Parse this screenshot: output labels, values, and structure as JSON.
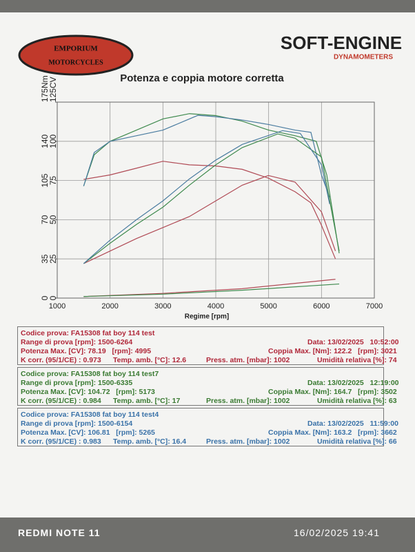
{
  "logo": {
    "left_top": "EMPORIUM",
    "left_bottom": "MOTORCYCLES",
    "right": "SOFT-ENGINE",
    "right_sub": "DYNAMOMETERS"
  },
  "chart_data": {
    "type": "line",
    "title": "Potenza e coppia motore corretta",
    "xlabel": "Regime [rpm]",
    "xlim": [
      1000,
      7000
    ],
    "xticks": [
      1000,
      2000,
      3000,
      4000,
      5000,
      6000,
      7000
    ],
    "ylim": [
      0,
      175
    ],
    "yticks": [
      0,
      35,
      70,
      105,
      140,
      {
        "value": 175,
        "label": "175Nm"
      }
    ],
    "y2lim": [
      0,
      125
    ],
    "y2ticks": [
      0,
      25,
      50,
      75,
      100,
      {
        "value": 125,
        "label": "125CV"
      }
    ],
    "grid": true,
    "series": [
      {
        "color": "#b04a55",
        "axis": "y",
        "x": [
          1500,
          2000,
          2500,
          3000,
          3500,
          4000,
          4500,
          5000,
          5500,
          5800,
          6000,
          6264
        ],
        "values": [
          106,
          110,
          116,
          122.2,
          119,
          118,
          115,
          107,
          95,
          85,
          65,
          35
        ]
      },
      {
        "color": "#3f8a4e",
        "axis": "y",
        "x": [
          1500,
          1700,
          2000,
          2500,
          3000,
          3502,
          4000,
          4500,
          5000,
          5500,
          5900,
          6100,
          6335
        ],
        "values": [
          100,
          128,
          140,
          150,
          160,
          164.7,
          163,
          158,
          150,
          145,
          140,
          110,
          40
        ]
      },
      {
        "color": "#4a7ca0",
        "axis": "y",
        "x": [
          1500,
          1700,
          2000,
          2500,
          3000,
          3662,
          4000,
          4500,
          5000,
          5500,
          5800,
          6000,
          6154
        ],
        "values": [
          100,
          130,
          140,
          145,
          150,
          163.2,
          162,
          159,
          155,
          150,
          148,
          110,
          90
        ]
      },
      {
        "color": "#b04a55",
        "axis": "y2",
        "x": [
          1500,
          2000,
          2500,
          3000,
          3500,
          4000,
          4500,
          4995,
          5500,
          6000,
          6264
        ],
        "values": [
          22,
          30,
          38,
          45,
          52,
          62,
          72,
          78.19,
          74,
          55,
          30
        ]
      },
      {
        "color": "#3f8a4e",
        "axis": "y2",
        "x": [
          1500,
          2000,
          2500,
          3000,
          3500,
          4000,
          4500,
          5173,
          5500,
          6000,
          6335
        ],
        "values": [
          22,
          35,
          47,
          58,
          72,
          85,
          96,
          104.72,
          102,
          90,
          30
        ]
      },
      {
        "color": "#4a7ca0",
        "axis": "y2",
        "x": [
          1500,
          2000,
          2500,
          3000,
          3500,
          4000,
          4500,
          5265,
          5600,
          6000,
          6154
        ],
        "values": [
          22,
          37,
          50,
          62,
          76,
          88,
          98,
          106.81,
          105,
          85,
          60
        ]
      },
      {
        "color": "#b04a55",
        "axis": "y2",
        "x": [
          1500,
          3000,
          4500,
          6264
        ],
        "values": [
          1,
          3,
          6,
          12
        ]
      },
      {
        "color": "#3f8a4e",
        "axis": "y2",
        "x": [
          1500,
          3000,
          4500,
          6335
        ],
        "values": [
          1,
          2.5,
          5,
          9
        ]
      }
    ]
  },
  "reports": [
    {
      "color": "#b0283a",
      "code": "Codice prova: FA15308 fat boy 114 test",
      "range": "Range di prova [rpm]: 1500-6264",
      "date": "Data: 13/02/2025   10:52:00",
      "power": "Potenza Max. [CV]: 78.19   [rpm]: 4995",
      "torque": "Coppia Max. [Nm]: 122.2   [rpm]: 3021",
      "kcorr": "K corr. (95/1/CE) : 0.973",
      "temp": "Temp. amb. [°C]: 12.6",
      "press": "Press. atm. [mbar]: 1002",
      "humidity": "Umidità relativa [%]: 74"
    },
    {
      "color": "#3a7a32",
      "code": "Codice prova: FA15308 fat boy 114 test7",
      "range": "Range di prova [rpm]: 1500-6335",
      "date": "Data: 13/02/2025   12:19:00",
      "power": "Potenza Max. [CV]: 104.72   [rpm]: 5173",
      "torque": "Coppia Max. [Nm]: 164.7   [rpm]: 3502",
      "kcorr": "K corr. (95/1/CE) : 0.984",
      "temp": "Temp. amb. [°C]: 17",
      "press": "Press. atm. [mbar]: 1002",
      "humidity": "Umidità relativa [%]: 63"
    },
    {
      "color": "#3a72a8",
      "code": "Codice prova: FA15308 fat boy 114 test4",
      "range": "Range di prova [rpm]: 1500-6154",
      "date": "Data: 13/02/2025   11:59:00",
      "power": "Potenza Max. [CV]: 106.81   [rpm]: 5265",
      "torque": "Coppia Max. [Nm]: 163.2   [rpm]: 3662",
      "kcorr": "K corr. (95/1/CE) : 0.983",
      "temp": "Temp. amb. [°C]: 16.4",
      "press": "Press. atm. [mbar]: 1002",
      "humidity": "Umidità relativa [%]: 66"
    }
  ],
  "footer": {
    "device": "REDMI NOTE 11",
    "timestamp": "16/02/2025  19:41"
  }
}
